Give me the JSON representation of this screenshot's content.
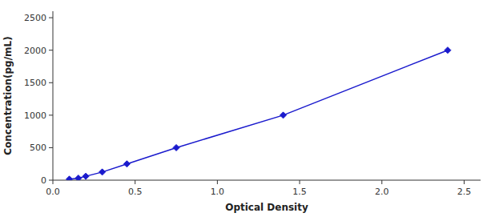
{
  "chart_data": {
    "type": "line",
    "xlabel": "Optical Density",
    "ylabel": "Concentration(pg/mL)",
    "x": [
      0.1,
      0.155,
      0.2,
      0.3,
      0.45,
      0.75,
      1.4,
      2.4
    ],
    "series": [
      {
        "values": [
          15,
          30,
          60,
          125,
          250,
          500,
          1000,
          2000
        ],
        "color": "#1a1acd",
        "marker": "diamond"
      }
    ],
    "xlim": [
      0.0,
      2.6
    ],
    "ylim": [
      0,
      2600
    ],
    "xticks": [
      {
        "value": 0,
        "label": "0.0"
      },
      0.5,
      {
        "value": 1,
        "label": "1.0"
      },
      1.5,
      {
        "value": 2,
        "label": "2.0"
      },
      2.5
    ],
    "yticks": [
      0,
      500,
      1000,
      1500,
      2000,
      2500
    ],
    "grid": false
  }
}
